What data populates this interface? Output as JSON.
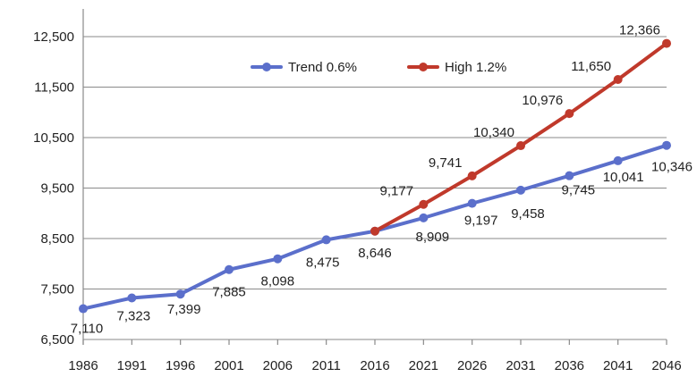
{
  "chart_data": {
    "type": "line",
    "title": "",
    "xlabel": "",
    "ylabel": "",
    "categories": [
      "1986",
      "1991",
      "1996",
      "2001",
      "2006",
      "2011",
      "2016",
      "2021",
      "2026",
      "2031",
      "2036",
      "2041",
      "2046"
    ],
    "ylim": [
      6500,
      12500
    ],
    "yticks": [
      6500,
      7500,
      8500,
      9500,
      10500,
      11500,
      12500
    ],
    "ytick_labels": [
      "6,500",
      "7,500",
      "8,500",
      "9,500",
      "10,500",
      "11,500",
      "12,500"
    ],
    "grid": true,
    "legend_position": "top-center",
    "series": [
      {
        "name": "Trend 0.6%",
        "color": "#5b6fcb",
        "values": [
          7110,
          7323,
          7399,
          7885,
          8098,
          8475,
          8646,
          8909,
          9197,
          9458,
          9745,
          10041,
          10346
        ],
        "labels": [
          "7,110",
          "7,323",
          "7,399",
          "7,885",
          "8,098",
          "8,475",
          "8,646",
          "8,909",
          "9,197",
          "9,458",
          "9,745",
          "10,041",
          "10,346"
        ]
      },
      {
        "name": "High 1.2%",
        "color": "#c0392b",
        "values": [
          null,
          null,
          null,
          null,
          null,
          null,
          8646,
          9177,
          9741,
          10340,
          10976,
          11650,
          12366
        ],
        "labels": [
          null,
          null,
          null,
          null,
          null,
          null,
          null,
          "9,177",
          "9,741",
          "10,340",
          "10,976",
          "11,650",
          "12,366"
        ]
      }
    ]
  }
}
